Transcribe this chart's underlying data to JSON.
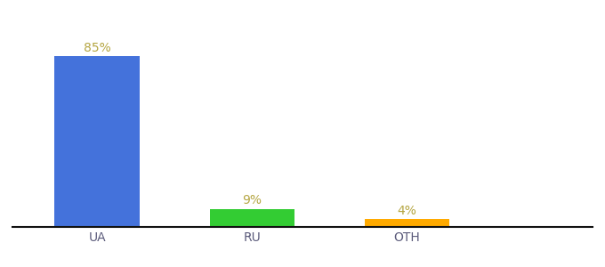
{
  "categories": [
    "UA",
    "RU",
    "OTH"
  ],
  "values": [
    85,
    9,
    4
  ],
  "bar_colors": [
    "#4472db",
    "#33cc33",
    "#ffaa00"
  ],
  "labels": [
    "85%",
    "9%",
    "4%"
  ],
  "ylim": [
    0,
    97
  ],
  "background_color": "#ffffff",
  "label_color": "#b5a642",
  "bar_width": 0.55,
  "label_fontsize": 10,
  "tick_fontsize": 10,
  "tick_color": "#5a5a7a",
  "x_positions": [
    0.18,
    0.55,
    0.82
  ],
  "figsize": [
    6.8,
    3.0
  ]
}
